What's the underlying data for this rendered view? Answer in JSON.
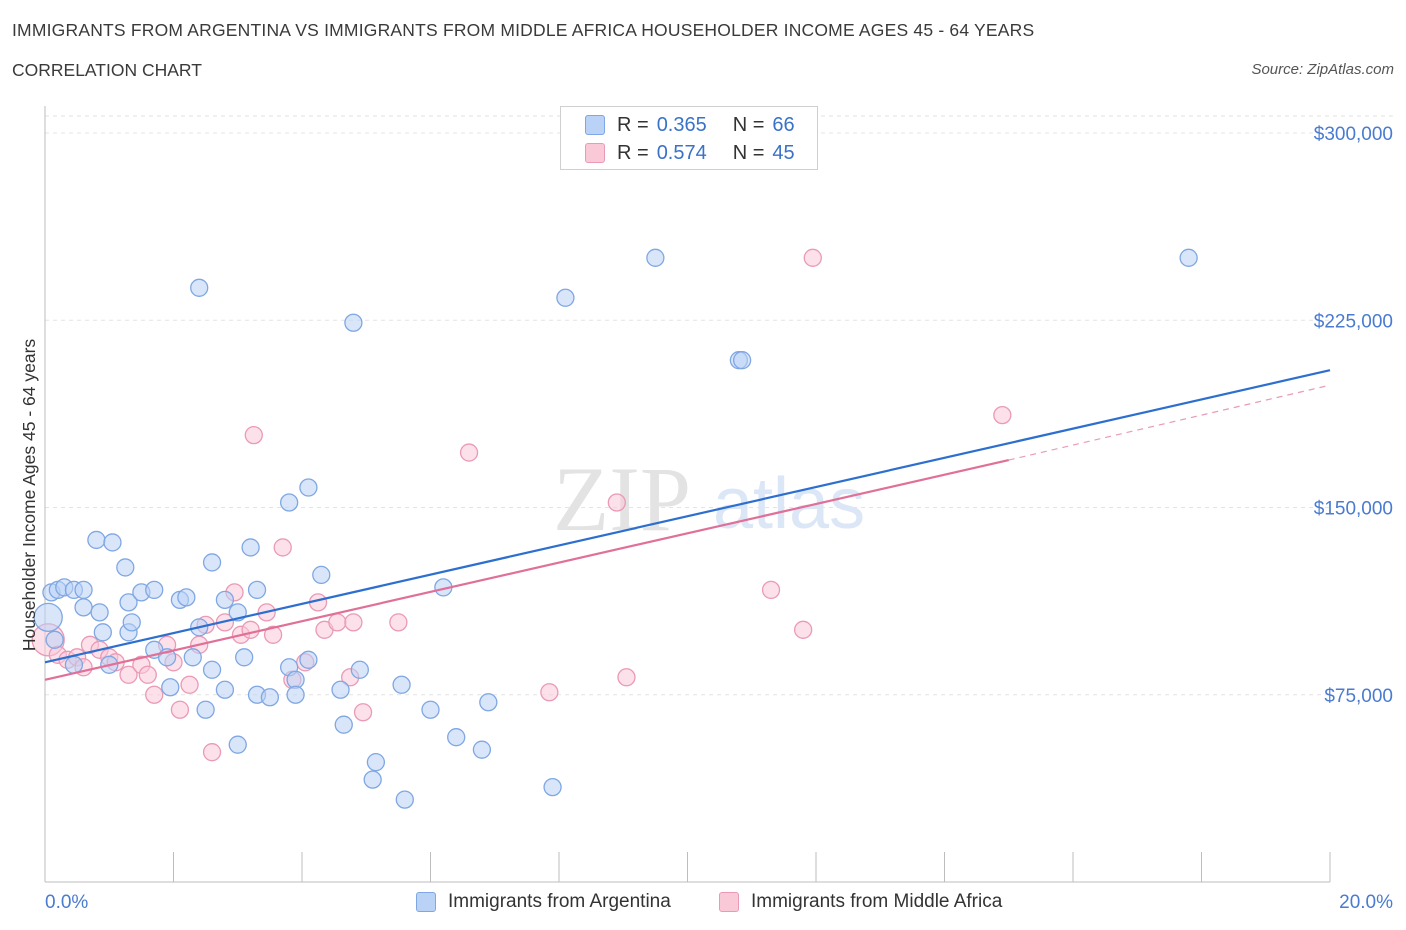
{
  "header": {
    "title": "IMMIGRANTS FROM ARGENTINA VS IMMIGRANTS FROM MIDDLE AFRICA HOUSEHOLDER INCOME AGES 45 - 64 YEARS",
    "subtitle": "CORRELATION CHART",
    "source": "Source: ZipAtlas.com"
  },
  "watermark": "ZIPatlas",
  "legend": {
    "r_label": "R =",
    "n_label": "N =",
    "blue_r": "0.365",
    "blue_n": "66",
    "pink_r": "0.574",
    "pink_n": "45"
  },
  "colors": {
    "blue_fill": "#b9d2f5",
    "blue_stroke": "#7fa7e3",
    "blue_line": "#2d6fcf",
    "pink_fill": "#f9c9d8",
    "pink_stroke": "#ea9ab4",
    "pink_line": "#e07098",
    "tick_text": "#4a7bd0"
  },
  "chart_data": {
    "type": "scatter",
    "title": "IMMIGRANTS FROM ARGENTINA VS IMMIGRANTS FROM MIDDLE AFRICA HOUSEHOLDER INCOME AGES 45 - 64 YEARS",
    "xlabel": "",
    "ylabel": "Householder Income Ages 45 - 64 years",
    "xlim": [
      0,
      20
    ],
    "ylim": [
      0,
      300000
    ],
    "x_tick_labels": [
      "0.0%",
      "20.0%"
    ],
    "y_ticks": [
      {
        "value": 75000,
        "label": "$75,000"
      },
      {
        "value": 150000,
        "label": "$150,000"
      },
      {
        "value": 225000,
        "label": "$225,000"
      },
      {
        "value": 300000,
        "label": "$300,000"
      }
    ],
    "grid": true,
    "legend_position": "top-center",
    "series": [
      {
        "name": "Immigrants from Argentina",
        "color": "blue",
        "trend": {
          "x0": 0,
          "y0": 88000,
          "x1": 20,
          "y1": 205000
        },
        "points": [
          [
            0.05,
            106000
          ],
          [
            0.1,
            116000
          ],
          [
            0.2,
            117000
          ],
          [
            0.3,
            118000
          ],
          [
            0.45,
            117000
          ],
          [
            0.6,
            117000
          ],
          [
            0.6,
            110000
          ],
          [
            0.85,
            108000
          ],
          [
            0.8,
            137000
          ],
          [
            1.05,
            136000
          ],
          [
            1.25,
            126000
          ],
          [
            0.9,
            100000
          ],
          [
            1.3,
            112000
          ],
          [
            1.5,
            116000
          ],
          [
            1.7,
            117000
          ],
          [
            1.3,
            100000
          ],
          [
            1.7,
            93000
          ],
          [
            1.9,
            90000
          ],
          [
            2.1,
            113000
          ],
          [
            2.2,
            114000
          ],
          [
            2.4,
            102000
          ],
          [
            2.3,
            90000
          ],
          [
            1.95,
            78000
          ],
          [
            2.6,
            128000
          ],
          [
            2.8,
            113000
          ],
          [
            3.0,
            108000
          ],
          [
            3.2,
            134000
          ],
          [
            3.3,
            117000
          ],
          [
            3.3,
            75000
          ],
          [
            3.5,
            74000
          ],
          [
            3.1,
            90000
          ],
          [
            2.8,
            77000
          ],
          [
            2.5,
            69000
          ],
          [
            2.6,
            85000
          ],
          [
            3.8,
            86000
          ],
          [
            3.9,
            81000
          ],
          [
            3.9,
            75000
          ],
          [
            4.1,
            89000
          ],
          [
            4.1,
            158000
          ],
          [
            3.8,
            152000
          ],
          [
            4.3,
            123000
          ],
          [
            4.6,
            77000
          ],
          [
            4.65,
            63000
          ],
          [
            4.8,
            224000
          ],
          [
            4.9,
            85000
          ],
          [
            5.1,
            41000
          ],
          [
            5.15,
            48000
          ],
          [
            5.6,
            33000
          ],
          [
            5.55,
            79000
          ],
          [
            6.0,
            69000
          ],
          [
            6.2,
            118000
          ],
          [
            6.4,
            58000
          ],
          [
            6.8,
            53000
          ],
          [
            6.9,
            72000
          ],
          [
            7.9,
            38000
          ],
          [
            8.1,
            234000
          ],
          [
            9.5,
            250000
          ],
          [
            10.8,
            209000
          ],
          [
            10.85,
            209000
          ],
          [
            17.8,
            250000
          ],
          [
            2.4,
            238000
          ],
          [
            3.0,
            55000
          ],
          [
            1.0,
            87000
          ],
          [
            0.45,
            87000
          ],
          [
            1.35,
            104000
          ],
          [
            0.15,
            97000
          ]
        ]
      },
      {
        "name": "Immigrants from Middle Africa",
        "color": "pink",
        "trend": {
          "x0": 0,
          "y0": 81000,
          "x1": 15,
          "y1": 169000
        },
        "trend_extension": {
          "x0": 15,
          "y0": 169000,
          "x1": 20,
          "y1": 199000
        },
        "points": [
          [
            0.05,
            97000
          ],
          [
            0.2,
            91000
          ],
          [
            0.35,
            89000
          ],
          [
            0.5,
            90000
          ],
          [
            0.6,
            86000
          ],
          [
            0.7,
            95000
          ],
          [
            0.85,
            93000
          ],
          [
            1.0,
            90000
          ],
          [
            1.1,
            88000
          ],
          [
            1.3,
            83000
          ],
          [
            1.5,
            87000
          ],
          [
            1.6,
            83000
          ],
          [
            1.7,
            75000
          ],
          [
            1.9,
            95000
          ],
          [
            2.0,
            88000
          ],
          [
            2.1,
            69000
          ],
          [
            2.25,
            79000
          ],
          [
            2.4,
            95000
          ],
          [
            2.5,
            103000
          ],
          [
            2.6,
            52000
          ],
          [
            2.8,
            104000
          ],
          [
            2.95,
            116000
          ],
          [
            3.05,
            99000
          ],
          [
            3.2,
            101000
          ],
          [
            3.25,
            179000
          ],
          [
            3.45,
            108000
          ],
          [
            3.55,
            99000
          ],
          [
            3.7,
            134000
          ],
          [
            3.85,
            81000
          ],
          [
            4.05,
            88000
          ],
          [
            4.25,
            112000
          ],
          [
            4.35,
            101000
          ],
          [
            4.55,
            104000
          ],
          [
            4.75,
            82000
          ],
          [
            4.8,
            104000
          ],
          [
            4.95,
            68000
          ],
          [
            5.5,
            104000
          ],
          [
            6.6,
            172000
          ],
          [
            7.85,
            76000
          ],
          [
            8.9,
            152000
          ],
          [
            9.05,
            82000
          ],
          [
            11.3,
            117000
          ],
          [
            11.8,
            101000
          ],
          [
            11.95,
            250000
          ],
          [
            14.9,
            187000
          ]
        ]
      }
    ]
  },
  "bottom_legend": {
    "blue_label": "Immigrants from Argentina",
    "pink_label": "Immigrants from Middle Africa"
  }
}
